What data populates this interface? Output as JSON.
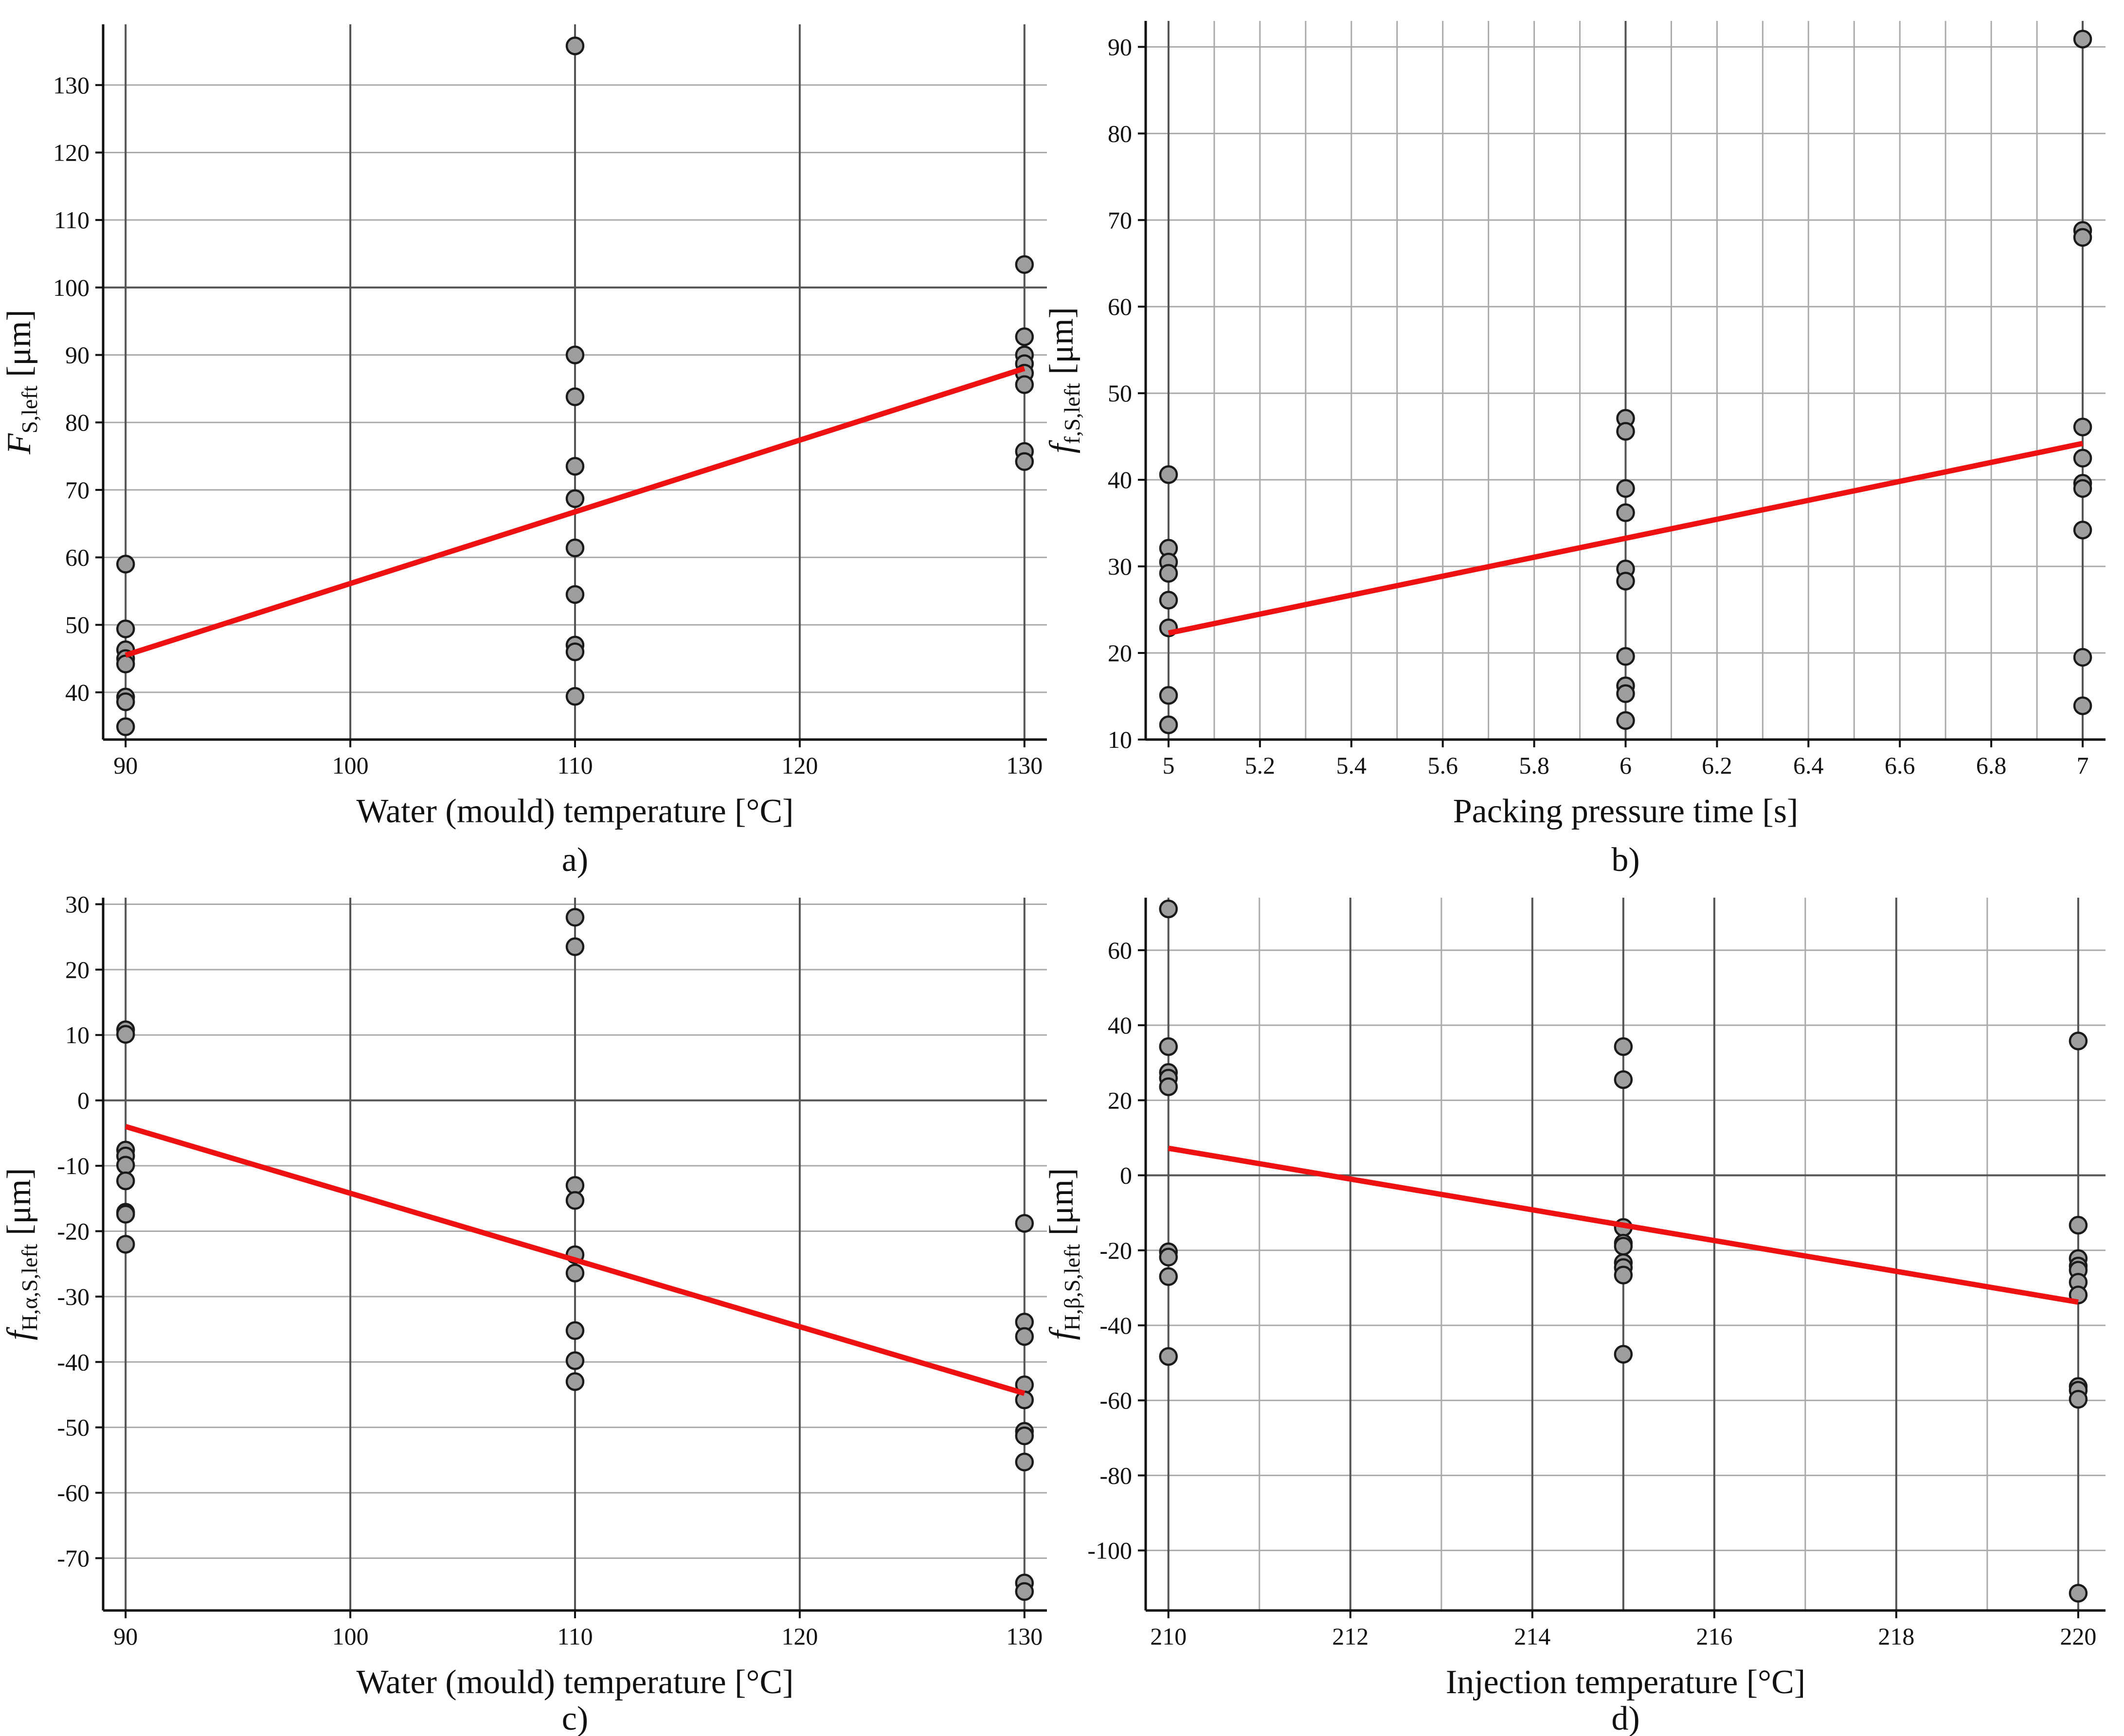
{
  "chart_data": [
    {
      "id": "a",
      "type": "scatter",
      "caption": "a)",
      "xlabel": "Water (mould) temperature [°C]",
      "ylabel": {
        "main": "F",
        "sub": "S,left",
        "unit": " [μm]"
      },
      "xlim": [
        89,
        131
      ],
      "ylim": [
        33,
        139
      ],
      "xticks": [
        90,
        100,
        110,
        120,
        130
      ],
      "xtick_labels": [
        "90",
        "100",
        "110",
        "120",
        "130"
      ],
      "yticks": [
        40,
        50,
        60,
        70,
        80,
        90,
        100,
        110,
        120,
        130
      ],
      "ytick_labels": [
        "40",
        "50",
        "60",
        "70",
        "80",
        "90",
        "100",
        "110",
        "120",
        "130"
      ],
      "xgrid_minor": [],
      "ygrid_minor": [],
      "xgrid_major": [
        100,
        120
      ],
      "ygrid_major": [
        100
      ],
      "points": [
        {
          "x": 90,
          "y": 59
        },
        {
          "x": 90,
          "y": 49.4
        },
        {
          "x": 90,
          "y": 46.3
        },
        {
          "x": 90,
          "y": 45
        },
        {
          "x": 90,
          "y": 44.2
        },
        {
          "x": 90,
          "y": 39.3
        },
        {
          "x": 90,
          "y": 38.6
        },
        {
          "x": 90,
          "y": 34.9
        },
        {
          "x": 110,
          "y": 135.8
        },
        {
          "x": 110,
          "y": 90
        },
        {
          "x": 110,
          "y": 83.8
        },
        {
          "x": 110,
          "y": 73.5
        },
        {
          "x": 110,
          "y": 68.7
        },
        {
          "x": 110,
          "y": 61.4
        },
        {
          "x": 110,
          "y": 54.5
        },
        {
          "x": 110,
          "y": 47
        },
        {
          "x": 110,
          "y": 46
        },
        {
          "x": 110,
          "y": 39.4
        },
        {
          "x": 130,
          "y": 103.4
        },
        {
          "x": 130,
          "y": 92.7
        },
        {
          "x": 130,
          "y": 90
        },
        {
          "x": 130,
          "y": 88.7
        },
        {
          "x": 130,
          "y": 87.3
        },
        {
          "x": 130,
          "y": 85.6
        },
        {
          "x": 130,
          "y": 75.7
        },
        {
          "x": 130,
          "y": 74.2
        }
      ],
      "fit_line": {
        "x": [
          90,
          130
        ],
        "y": [
          45.5,
          88
        ]
      }
    },
    {
      "id": "b",
      "type": "scatter",
      "caption": "b)",
      "xlabel": "Packing pressure time [s]",
      "ylabel": {
        "main": "f",
        "sub": "f,S,left",
        "unit": " [μm]"
      },
      "xlim": [
        4.95,
        7.05
      ],
      "ylim": [
        10,
        93
      ],
      "xticks": [
        5,
        5.2,
        5.4,
        5.6,
        5.8,
        6,
        6.2,
        6.4,
        6.6,
        6.8,
        7
      ],
      "xtick_labels": [
        "5",
        "5.2",
        "5.4",
        "5.6",
        "5.8",
        "6",
        "6.2",
        "6.4",
        "6.6",
        "6.8",
        "7"
      ],
      "yticks": [
        10,
        20,
        30,
        40,
        50,
        60,
        70,
        80,
        90
      ],
      "ytick_labels": [
        "10",
        "20",
        "30",
        "40",
        "50",
        "60",
        "70",
        "80",
        "90"
      ],
      "xgrid_minor": [
        5.1,
        5.3,
        5.5,
        5.7,
        5.9,
        6.1,
        6.3,
        6.5,
        6.7,
        6.9
      ],
      "ygrid_minor": [],
      "xgrid_major": [
        6
      ],
      "ygrid_major": [],
      "points": [
        {
          "x": 5,
          "y": 40.6
        },
        {
          "x": 5,
          "y": 32.1
        },
        {
          "x": 5,
          "y": 30.5
        },
        {
          "x": 5,
          "y": 29.2
        },
        {
          "x": 5,
          "y": 26.1
        },
        {
          "x": 5,
          "y": 22.9
        },
        {
          "x": 5,
          "y": 15.1
        },
        {
          "x": 5,
          "y": 11.7
        },
        {
          "x": 6,
          "y": 47.1
        },
        {
          "x": 6,
          "y": 45.6
        },
        {
          "x": 6,
          "y": 39
        },
        {
          "x": 6,
          "y": 36.2
        },
        {
          "x": 6,
          "y": 29.7
        },
        {
          "x": 6,
          "y": 28.3
        },
        {
          "x": 6,
          "y": 19.6
        },
        {
          "x": 6,
          "y": 16.2
        },
        {
          "x": 6,
          "y": 15.3
        },
        {
          "x": 6,
          "y": 12.2
        },
        {
          "x": 7,
          "y": 90.9
        },
        {
          "x": 7,
          "y": 68.8
        },
        {
          "x": 7,
          "y": 68
        },
        {
          "x": 7,
          "y": 46.1
        },
        {
          "x": 7,
          "y": 42.5
        },
        {
          "x": 7,
          "y": 39.6
        },
        {
          "x": 7,
          "y": 39
        },
        {
          "x": 7,
          "y": 34.2
        },
        {
          "x": 7,
          "y": 19.5
        },
        {
          "x": 7,
          "y": 13.9
        }
      ],
      "fit_line": {
        "x": [
          5,
          7
        ],
        "y": [
          22.3,
          44.2
        ]
      }
    },
    {
      "id": "c",
      "type": "scatter",
      "caption": "c)",
      "xlabel": "Water (mould) temperature [°C]",
      "ylabel": {
        "main": "f",
        "sub": "H,α,S,left",
        "unit": " [μm]"
      },
      "xlim": [
        89,
        131
      ],
      "ylim": [
        -78,
        31
      ],
      "xticks": [
        90,
        100,
        110,
        120,
        130
      ],
      "xtick_labels": [
        "90",
        "100",
        "110",
        "120",
        "130"
      ],
      "yticks": [
        -70,
        -60,
        -50,
        -40,
        -30,
        -20,
        -10,
        0,
        10,
        20,
        30
      ],
      "ytick_labels": [
        "-70",
        "-60",
        "-50",
        "-40",
        "-30",
        "-20",
        "-10",
        "0",
        "10",
        "20",
        "30"
      ],
      "xgrid_minor": [],
      "ygrid_minor": [],
      "xgrid_major": [
        100,
        120
      ],
      "ygrid_major": [
        0
      ],
      "points": [
        {
          "x": 90,
          "y": 10.8
        },
        {
          "x": 90,
          "y": 10.1
        },
        {
          "x": 90,
          "y": -7.6
        },
        {
          "x": 90,
          "y": -8.5
        },
        {
          "x": 90,
          "y": -9.9
        },
        {
          "x": 90,
          "y": -12.3
        },
        {
          "x": 90,
          "y": -17.1
        },
        {
          "x": 90,
          "y": -17.4
        },
        {
          "x": 90,
          "y": -22
        },
        {
          "x": 110,
          "y": 28
        },
        {
          "x": 110,
          "y": 23.5
        },
        {
          "x": 110,
          "y": -13
        },
        {
          "x": 110,
          "y": -15.3
        },
        {
          "x": 110,
          "y": -23.6
        },
        {
          "x": 110,
          "y": -26.4
        },
        {
          "x": 110,
          "y": -35.2
        },
        {
          "x": 110,
          "y": -39.8
        },
        {
          "x": 110,
          "y": -43
        },
        {
          "x": 130,
          "y": -18.8
        },
        {
          "x": 130,
          "y": -33.9
        },
        {
          "x": 130,
          "y": -36.1
        },
        {
          "x": 130,
          "y": -43.5
        },
        {
          "x": 130,
          "y": -45.8
        },
        {
          "x": 130,
          "y": -50.6
        },
        {
          "x": 130,
          "y": -51.3
        },
        {
          "x": 130,
          "y": -55.3
        },
        {
          "x": 130,
          "y": -73.8
        },
        {
          "x": 130,
          "y": -75.1
        }
      ],
      "fit_line": {
        "x": [
          90,
          130
        ],
        "y": [
          -4,
          -44.8
        ]
      }
    },
    {
      "id": "d",
      "type": "scatter",
      "caption": "d)",
      "xlabel": "Injection temperature [°C]",
      "ylabel": {
        "main": "f",
        "sub": "H,β,S,left",
        "unit": " [μm]"
      },
      "xlim": [
        209.75,
        220.3
      ],
      "ylim": [
        -116,
        74
      ],
      "xticks": [
        210,
        212,
        214,
        216,
        218,
        220
      ],
      "xtick_labels": [
        "210",
        "212",
        "214",
        "216",
        "218",
        "220"
      ],
      "yticks": [
        -100,
        -80,
        -60,
        -40,
        -20,
        0,
        20,
        40,
        60
      ],
      "ytick_labels": [
        "-100",
        "-80",
        "-60",
        "-40",
        "-20",
        "0",
        "20",
        "40",
        "60"
      ],
      "xgrid_minor": [
        211,
        213,
        215,
        217,
        219
      ],
      "ygrid_minor": [],
      "xgrid_major": [
        212,
        214,
        216,
        218
      ],
      "ygrid_major": [
        0
      ],
      "points": [
        {
          "x": 210,
          "y": 71
        },
        {
          "x": 210,
          "y": 34.3
        },
        {
          "x": 210,
          "y": 27.4
        },
        {
          "x": 210,
          "y": 25.9
        },
        {
          "x": 210,
          "y": 23.6
        },
        {
          "x": 210,
          "y": -20.4
        },
        {
          "x": 210,
          "y": -21.8
        },
        {
          "x": 210,
          "y": -27
        },
        {
          "x": 210,
          "y": -48.3
        },
        {
          "x": 215,
          "y": 34.3
        },
        {
          "x": 215,
          "y": 25.5
        },
        {
          "x": 215,
          "y": -13.9
        },
        {
          "x": 215,
          "y": -18.1
        },
        {
          "x": 215,
          "y": -18.9
        },
        {
          "x": 215,
          "y": -23.3
        },
        {
          "x": 215,
          "y": -24.6
        },
        {
          "x": 215,
          "y": -26.6
        },
        {
          "x": 215,
          "y": -47.7
        },
        {
          "x": 220,
          "y": 35.8
        },
        {
          "x": 220,
          "y": -13.3
        },
        {
          "x": 220,
          "y": -22.2
        },
        {
          "x": 220,
          "y": -24.2
        },
        {
          "x": 220,
          "y": -25.3
        },
        {
          "x": 220,
          "y": -28.5
        },
        {
          "x": 220,
          "y": -31.9
        },
        {
          "x": 220,
          "y": -56.3
        },
        {
          "x": 220,
          "y": -57.3
        },
        {
          "x": 220,
          "y": -59.7
        },
        {
          "x": 220,
          "y": -111.4
        }
      ],
      "fit_line": {
        "x": [
          210,
          220
        ],
        "y": [
          7.2,
          -33.8
        ]
      }
    }
  ],
  "colors": {
    "marker_fill": "#9e9e9e",
    "marker_stroke": "#1a1a1a",
    "fit_line": "#ee1111",
    "major_grid": "#555555",
    "minor_grid": "#aaaaaa",
    "axis": "#111111"
  }
}
